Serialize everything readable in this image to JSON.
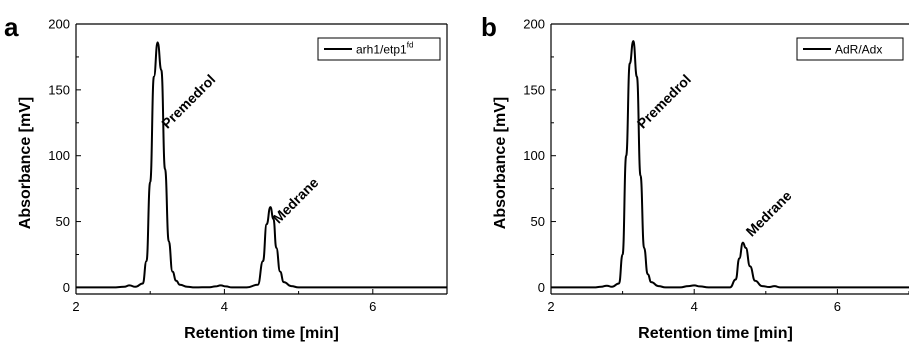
{
  "chart_data": [
    {
      "type": "line",
      "panel_label": "a",
      "xlabel": "Retention time [min]",
      "ylabel": "Absorbance [mV]",
      "xlim": [
        2,
        7
      ],
      "ylim": [
        -5,
        200
      ],
      "x_ticks": [
        "2",
        "4",
        "6"
      ],
      "y_ticks": [
        "0",
        "50",
        "100",
        "150",
        "200"
      ],
      "legend": {
        "label": "arh1/etp1",
        "superscript": "fd",
        "position": "top-right"
      },
      "series": [
        {
          "name": "arh1/etp1fd",
          "x": [
            2.0,
            2.5,
            2.65,
            2.72,
            2.8,
            2.9,
            2.95,
            3.0,
            3.05,
            3.1,
            3.15,
            3.2,
            3.25,
            3.3,
            3.35,
            3.4,
            3.5,
            3.6,
            3.8,
            3.88,
            3.95,
            4.02,
            4.1,
            4.3,
            4.45,
            4.52,
            4.57,
            4.62,
            4.66,
            4.7,
            4.75,
            4.8,
            4.9,
            5.0,
            5.3,
            6.0,
            7.0
          ],
          "y": [
            0,
            0,
            0.5,
            1.5,
            0.5,
            3,
            20,
            80,
            160,
            186,
            165,
            90,
            35,
            12,
            5,
            2,
            0.5,
            0,
            0.2,
            0.8,
            1.5,
            0.8,
            0,
            0,
            2,
            20,
            48,
            61,
            52,
            30,
            12,
            4,
            1,
            0,
            0,
            0,
            0
          ]
        }
      ],
      "annotations": [
        {
          "text": "Premedrol",
          "x": 3.15,
          "y": 120
        },
        {
          "text": "Medrane",
          "x": 4.65,
          "y": 48
        }
      ]
    },
    {
      "type": "line",
      "panel_label": "b",
      "xlabel": "Retention time [min]",
      "ylabel": "Absorbance [mV]",
      "xlim": [
        2,
        7
      ],
      "ylim": [
        -5,
        200
      ],
      "x_ticks": [
        "2",
        "4",
        "6"
      ],
      "y_ticks": [
        "0",
        "50",
        "100",
        "150",
        "200"
      ],
      "legend": {
        "label": "AdR/Adx",
        "position": "top-right"
      },
      "series": [
        {
          "name": "AdR/Adx",
          "x": [
            2.0,
            2.6,
            2.7,
            2.78,
            2.85,
            2.95,
            3.0,
            3.05,
            3.1,
            3.15,
            3.2,
            3.25,
            3.3,
            3.35,
            3.4,
            3.5,
            3.6,
            3.8,
            3.92,
            4.0,
            4.08,
            4.2,
            4.5,
            4.58,
            4.63,
            4.68,
            4.72,
            4.78,
            4.85,
            4.95,
            5.05,
            5.12,
            5.2,
            5.5,
            7.0
          ],
          "y": [
            0,
            0,
            0.5,
            1.3,
            0.5,
            3,
            25,
            100,
            170,
            187,
            160,
            85,
            30,
            10,
            4,
            1,
            0,
            0,
            1,
            1.5,
            0.8,
            0,
            0,
            6,
            22,
            34,
            30,
            16,
            5,
            1,
            0.3,
            1,
            0,
            0,
            0
          ]
        }
      ],
      "annotations": [
        {
          "text": "Premedrol",
          "x": 3.2,
          "y": 120
        },
        {
          "text": "Medrane",
          "x": 4.72,
          "y": 38
        }
      ]
    }
  ]
}
